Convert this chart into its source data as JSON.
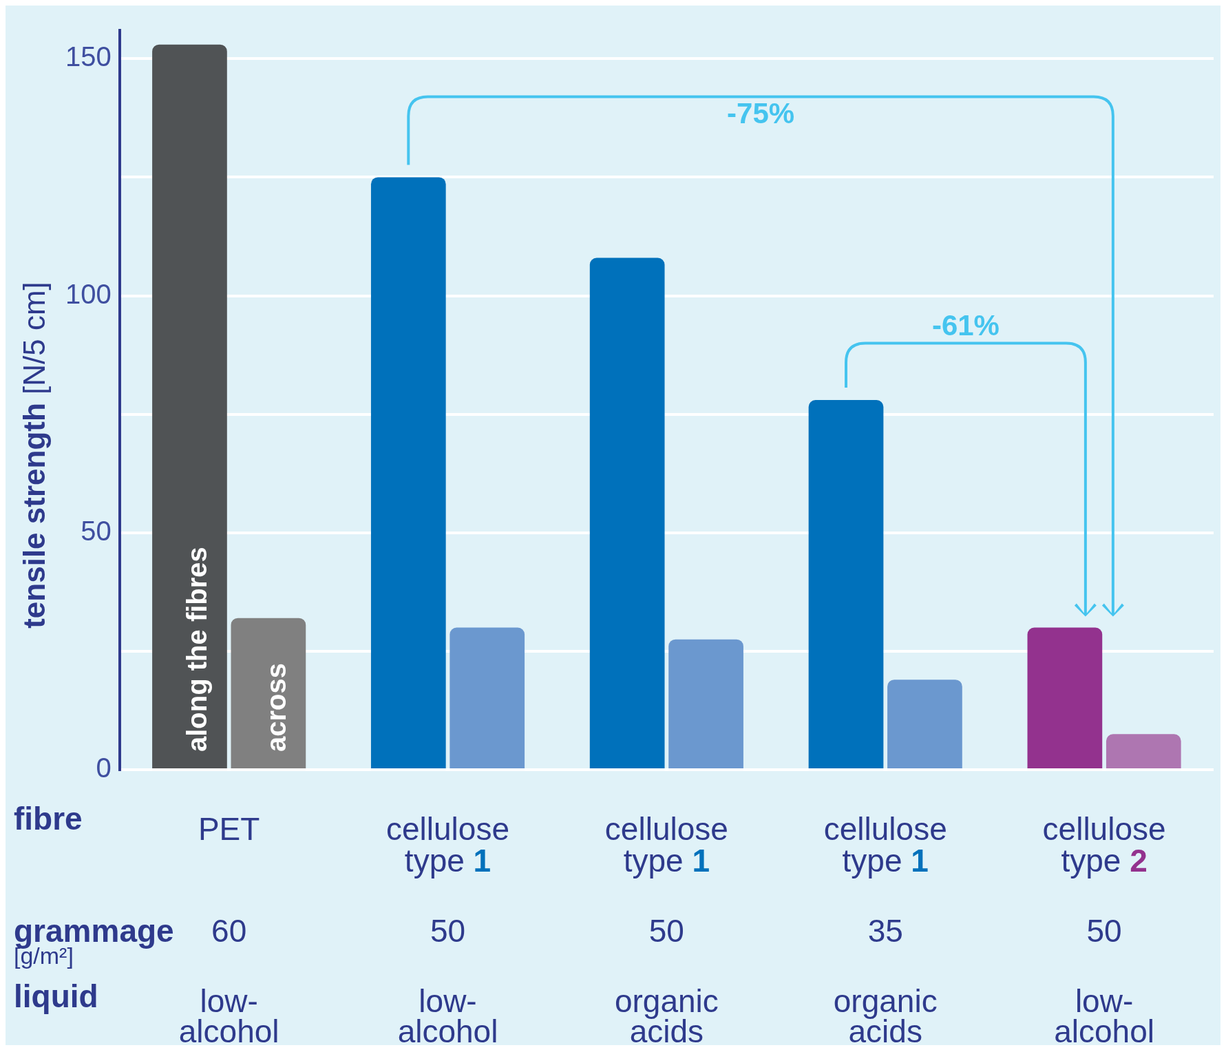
{
  "chart_data": {
    "type": "bar",
    "categories": [
      "PET",
      "cellulose type 1",
      "cellulose type 1",
      "cellulose type 1",
      "cellulose type 2"
    ],
    "series": [
      {
        "name": "along the fibres",
        "colors": [
          "#505355",
          "#0071bb",
          "#0071bb",
          "#0071bb",
          "#93328e"
        ],
        "values": [
          153,
          125,
          108,
          78,
          30
        ]
      },
      {
        "name": "across",
        "colors": [
          "#808080",
          "#6b98cf",
          "#6b98cf",
          "#6b98cf",
          "#ae76b1"
        ],
        "values": [
          32,
          30,
          27.5,
          19,
          7.5
        ]
      }
    ],
    "ylabel": "tensile strength [N/5 cm]",
    "ylim": [
      0,
      156
    ],
    "yticks": [
      0,
      {
        "value": 25,
        "label": null
      },
      50,
      {
        "value": 75,
        "label": null
      },
      100,
      {
        "value": 125,
        "label": null
      },
      150
    ],
    "grid": "y",
    "legend": false,
    "annotations": [
      "-75%",
      "-61%",
      "fibre",
      "grammage",
      "[g/m²]",
      "liquid",
      "60",
      "50",
      "50",
      "35",
      "50",
      "low-alcohol",
      "low-alcohol",
      "organic acids",
      "organic acids",
      "low-alcohol"
    ]
  }
}
